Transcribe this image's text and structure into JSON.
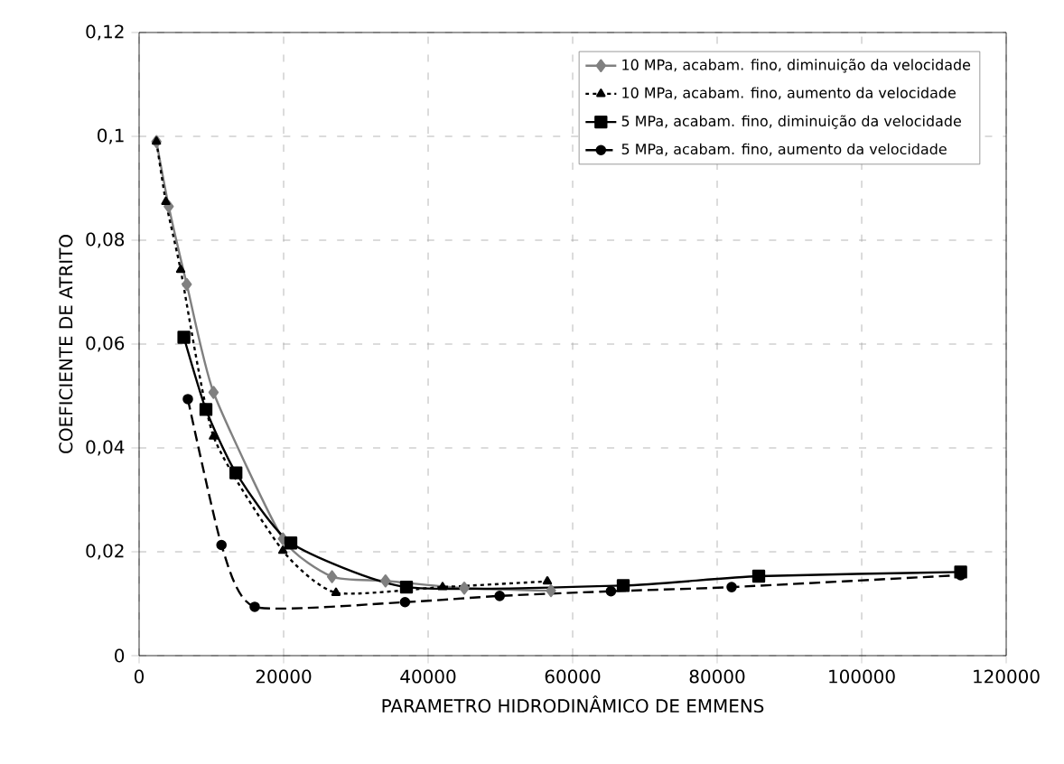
{
  "chart_data": {
    "type": "line",
    "xlabel": "PARAMETRO HIDRODINÂMICO DE EMMENS",
    "ylabel": "COEFICIENTE DE ATRITO",
    "xlim": [
      0,
      120000
    ],
    "xticks": [
      0,
      20000,
      40000,
      60000,
      80000,
      100000,
      120000
    ],
    "ylim": [
      0,
      0.12
    ],
    "yticks": [
      {
        "value": 0,
        "label": "0"
      },
      {
        "value": 0.02,
        "label": "0,02"
      },
      {
        "value": 0.04,
        "label": "0,04"
      },
      {
        "value": 0.06,
        "label": "0,06"
      },
      {
        "value": 0.08,
        "label": "0,08"
      },
      {
        "value": 0.1,
        "label": "0,1"
      },
      {
        "value": 0.12,
        "label": "0,12"
      }
    ],
    "grid": true,
    "legend": "top right",
    "series": [
      {
        "name": "10 MPa, acabam. fino, diminuição da velocidade",
        "color": "#808080",
        "marker": "diamond",
        "line_style": "solid",
        "x": [
          2400,
          4100,
          6600,
          10300,
          19900,
          26700,
          34100,
          45000,
          57000
        ],
        "values": [
          0.099,
          0.0865,
          0.0715,
          0.0507,
          0.0225,
          0.0152,
          0.0144,
          0.013,
          0.0125
        ]
      },
      {
        "name": "10 MPa, acabam. fino, aumento da velocidade",
        "color": "#000000",
        "marker": "triangle",
        "line_style": "dotted",
        "x": [
          2400,
          3700,
          5750,
          10300,
          19900,
          27250,
          42000,
          56500
        ],
        "values": [
          0.099,
          0.0874,
          0.0743,
          0.0422,
          0.0202,
          0.0121,
          0.0132,
          0.0143
        ]
      },
      {
        "name": "5 MPa, acabam. fino, diminuição da velocidade",
        "color": "#000000",
        "marker": "square",
        "line_style": "solid",
        "x": [
          6200,
          9250,
          13400,
          21000,
          37000,
          67000,
          85750,
          113700
        ],
        "values": [
          0.0613,
          0.0474,
          0.0352,
          0.0217,
          0.0132,
          0.0135,
          0.0153,
          0.0161
        ]
      },
      {
        "name": "5 MPa, acabam. fino, aumento da velocidade",
        "color": "#000000",
        "marker": "circle",
        "line_style": "dashed",
        "x": [
          6750,
          11400,
          16000,
          36800,
          49900,
          65300,
          82000,
          113700
        ],
        "values": [
          0.0494,
          0.0213,
          0.0094,
          0.0103,
          0.0115,
          0.0124,
          0.0132,
          0.0155
        ]
      }
    ]
  }
}
